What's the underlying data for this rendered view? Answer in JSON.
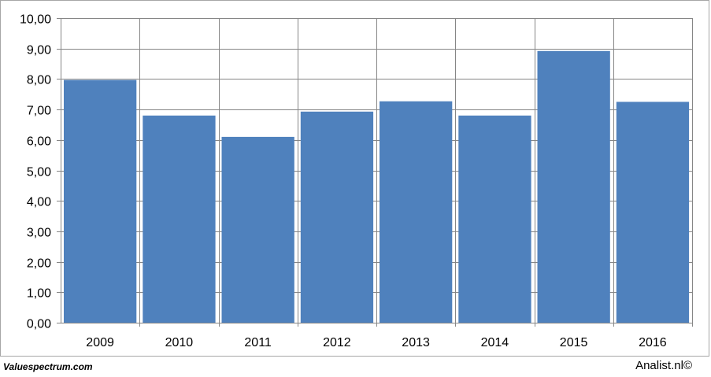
{
  "chart_data": {
    "type": "bar",
    "categories": [
      "2009",
      "2010",
      "2011",
      "2012",
      "2013",
      "2014",
      "2015",
      "2016"
    ],
    "values": [
      7.97,
      6.8,
      6.1,
      6.93,
      7.27,
      6.8,
      8.92,
      7.25
    ],
    "title": "",
    "xlabel": "",
    "ylabel": "",
    "ylim": [
      0,
      10
    ],
    "yticks": [
      "0,00",
      "1,00",
      "2,00",
      "3,00",
      "4,00",
      "5,00",
      "6,00",
      "7,00",
      "8,00",
      "9,00",
      "10,00"
    ],
    "grid": true,
    "bar_color": "#4f81bd",
    "grid_color": "#868686"
  },
  "footer": {
    "source_left": "Valuespectrum.com",
    "source_right": "Analist.nl©"
  }
}
